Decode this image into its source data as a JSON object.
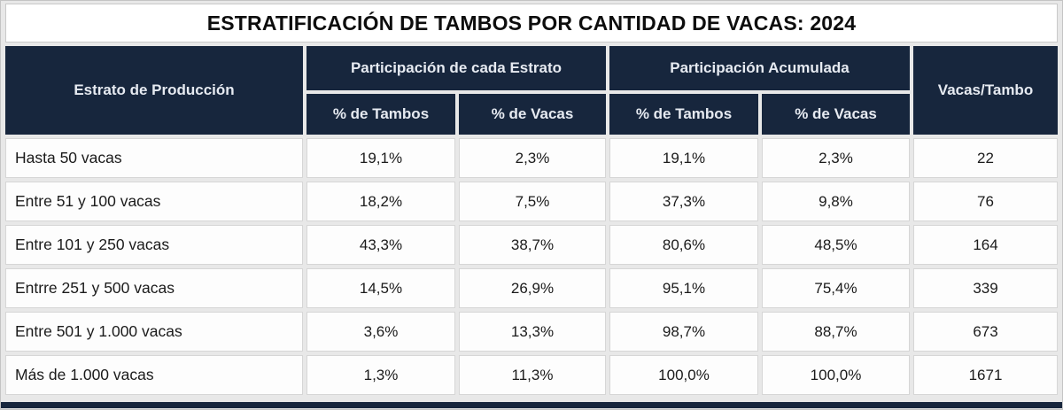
{
  "title": "ESTRATIFICACIÓN DE TAMBOS POR CANTIDAD DE VACAS: 2024",
  "colors": {
    "header_bg": "#17263d",
    "header_text": "#e6eaf1",
    "grout": "#e8e8e8",
    "cell_bg": "#fdfdfd",
    "title_text": "#0d0d0d"
  },
  "header": {
    "stratum": "Estrato de Producción",
    "group1": "Participación de cada Estrato",
    "group2": "Participación Acumulada",
    "sub_tambos_1": "% de Tambos",
    "sub_vacas_1": "% de Vacas",
    "sub_tambos_2": "% de Tambos",
    "sub_vacas_2": "% de Vacas",
    "last": "Vacas/Tambo"
  },
  "rows": [
    {
      "label": "Hasta 50 vacas",
      "values": [
        "19,1%",
        "2,3%",
        "19,1%",
        "2,3%",
        "22"
      ]
    },
    {
      "label": "Entre 51 y 100 vacas",
      "values": [
        "18,2%",
        "7,5%",
        "37,3%",
        "9,8%",
        "76"
      ]
    },
    {
      "label": "Entre 101 y 250 vacas",
      "values": [
        "43,3%",
        "38,7%",
        "80,6%",
        "48,5%",
        "164"
      ]
    },
    {
      "label": "Entrre 251 y 500 vacas",
      "values": [
        "14,5%",
        "26,9%",
        "95,1%",
        "75,4%",
        "339"
      ]
    },
    {
      "label": "Entre 501 y 1.000 vacas",
      "values": [
        "3,6%",
        "13,3%",
        "98,7%",
        "88,7%",
        "673"
      ]
    },
    {
      "label": "Más de 1.000 vacas",
      "values": [
        "1,3%",
        "11,3%",
        "100,0%",
        "100,0%",
        "1671"
      ]
    }
  ],
  "chart_data": {
    "type": "table",
    "title": "ESTRATIFICACIÓN DE TAMBOS POR CANTIDAD DE VACAS: 2024",
    "columns": [
      "Estrato de Producción",
      "Participación de cada Estrato — % de Tambos",
      "Participación de cada Estrato — % de Vacas",
      "Participación Acumulada — % de Tambos",
      "Participación Acumulada — % de Vacas",
      "Vacas/Tambo"
    ],
    "rows": [
      [
        "Hasta 50 vacas",
        19.1,
        2.3,
        19.1,
        2.3,
        22
      ],
      [
        "Entre 51 y 100 vacas",
        18.2,
        7.5,
        37.3,
        9.8,
        76
      ],
      [
        "Entre 101 y 250 vacas",
        43.3,
        38.7,
        80.6,
        48.5,
        164
      ],
      [
        "Entrre 251 y 500 vacas",
        14.5,
        26.9,
        95.1,
        75.4,
        339
      ],
      [
        "Entre 501 y 1.000 vacas",
        3.6,
        13.3,
        98.7,
        88.7,
        673
      ],
      [
        "Más de 1.000 vacas",
        1.3,
        11.3,
        100.0,
        100.0,
        1671
      ]
    ],
    "units": {
      "percent_columns": [
        1,
        2,
        3,
        4
      ],
      "decimal_separator": ","
    }
  }
}
